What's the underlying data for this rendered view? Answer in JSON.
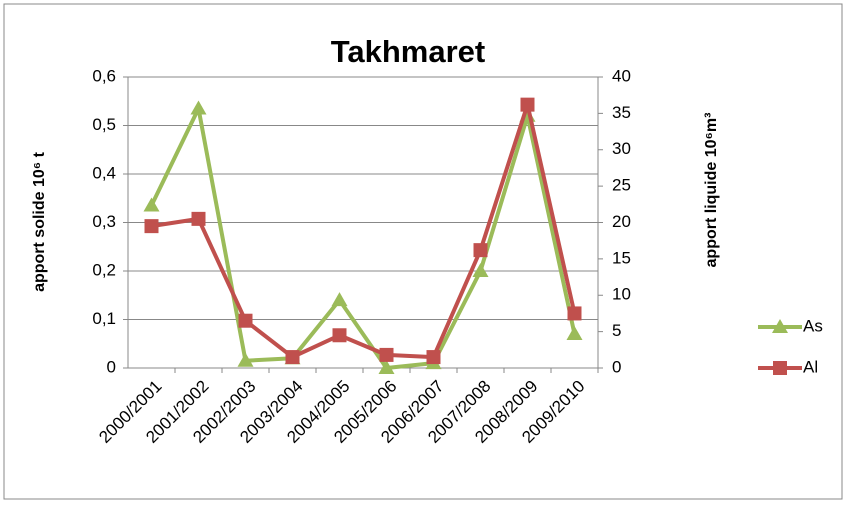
{
  "chart_data": {
    "type": "line",
    "title": "Takhmaret",
    "y_label": "apport solide 10⁶ t",
    "y2_label": "apport liquide 10⁶m³",
    "categories": [
      "2000/2001",
      "2001/2002",
      "2002/2003",
      "2003/2004",
      "2004/2005",
      "2005/2006",
      "2006/2007",
      "2007/2008",
      "2008/2009",
      "2009/2010"
    ],
    "series": [
      {
        "name": "As",
        "color": "#9bbb59",
        "marker": "triangle",
        "values": [
          0.335,
          0.535,
          0.015,
          0.02,
          0.14,
          0.0,
          0.01,
          0.2,
          0.52,
          0.07
        ]
      },
      {
        "name": "Al",
        "color": "#c0504d",
        "marker": "square",
        "axis": "y2",
        "values": [
          19.5,
          20.5,
          6.5,
          1.5,
          4.5,
          1.8,
          1.5,
          16.2,
          36.2,
          7.5
        ]
      }
    ],
    "ylim": [
      0,
      0.6
    ],
    "yticks": [
      0,
      {
        "value": 0.1,
        "label": "0,1"
      },
      {
        "value": 0.2,
        "label": "0,2"
      },
      {
        "value": 0.3,
        "label": "0,3"
      },
      {
        "value": 0.4,
        "label": "0,4"
      },
      {
        "value": 0.5,
        "label": "0,5"
      },
      {
        "value": 0.6,
        "label": "0,6"
      }
    ],
    "y2lim": [
      0,
      40
    ],
    "y2ticks": [
      0,
      5,
      10,
      15,
      20,
      25,
      30,
      35,
      40
    ],
    "grid": true,
    "legend": "right"
  }
}
